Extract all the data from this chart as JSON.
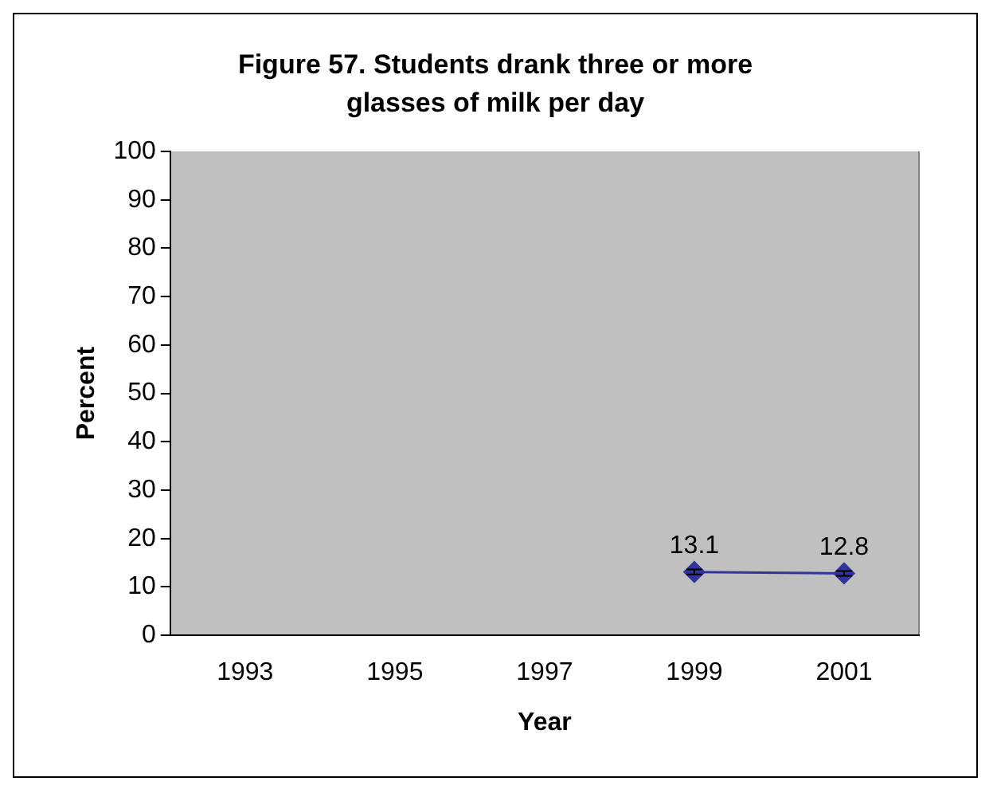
{
  "chart_data": {
    "type": "line",
    "title": "Figure 57. Students drank three or more glasses of milk per day",
    "xlabel": "Year",
    "ylabel": "Percent",
    "categories": [
      "1993",
      "1995",
      "1997",
      "1999",
      "2001"
    ],
    "series": [
      {
        "color": "#333399",
        "values": [
          null,
          null,
          null,
          13.1,
          12.8
        ],
        "errors": [
          null,
          null,
          null,
          0.5,
          0.5
        ]
      }
    ],
    "ylim": [
      0,
      100
    ],
    "yticks": [
      0,
      10,
      20,
      30,
      40,
      50,
      60,
      70,
      80,
      90,
      100
    ],
    "grid": false,
    "legend": false,
    "marker": "diamond",
    "line_style": "solid",
    "data_labels": true
  }
}
